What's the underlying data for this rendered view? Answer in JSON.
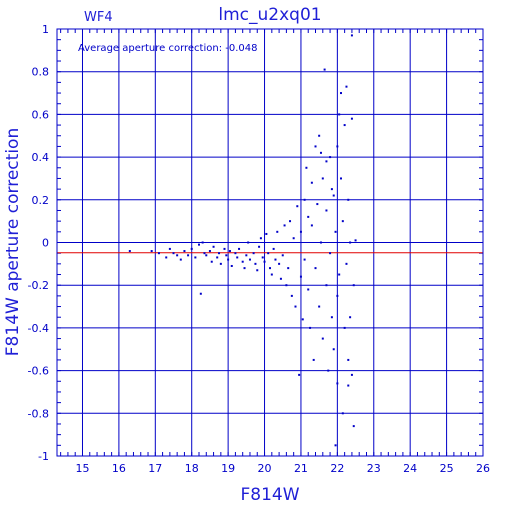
{
  "chart_data": {
    "type": "scatter",
    "title": "lmc_u2xq01",
    "panel_label": "WF4",
    "annotation": "Average aperture correction:  -0.048",
    "xlabel": "F814W",
    "ylabel": "F814W aperture correction",
    "xlim": [
      14.3,
      26
    ],
    "ylim": [
      -1,
      1
    ],
    "x_ticks": [
      15,
      16,
      17,
      18,
      19,
      20,
      21,
      22,
      23,
      24,
      25,
      26
    ],
    "x_tick_labels": [
      "15",
      "16",
      "17",
      "18",
      "19",
      "20",
      "21",
      "22",
      "23",
      "24",
      "25",
      "26"
    ],
    "y_ticks": [
      -1,
      -0.8,
      -0.6,
      -0.4,
      -0.2,
      0,
      0.2,
      0.4,
      0.6,
      0.8,
      1
    ],
    "y_tick_labels": [
      "-1",
      "-0.8",
      "-0.6",
      "-0.4",
      "-0.2",
      "0",
      "0.2",
      "0.4",
      "0.6",
      "0.8",
      "1"
    ],
    "grid": true,
    "reference_line": {
      "y": -0.048,
      "color": "#e00000"
    },
    "colors": {
      "axes": "#0000c8",
      "points": "#0000c8",
      "reference": "#e00000",
      "title": "#1f1fd6"
    },
    "points": [
      [
        16.3,
        -0.04
      ],
      [
        16.9,
        -0.04
      ],
      [
        17.1,
        -0.05
      ],
      [
        17.3,
        -0.07
      ],
      [
        17.4,
        -0.03
      ],
      [
        17.5,
        -0.05
      ],
      [
        17.6,
        -0.06
      ],
      [
        17.7,
        -0.08
      ],
      [
        17.8,
        -0.04
      ],
      [
        17.9,
        -0.06
      ],
      [
        18.0,
        -0.03
      ],
      [
        18.1,
        -0.07
      ],
      [
        18.2,
        -0.01
      ],
      [
        18.25,
        -0.24
      ],
      [
        18.3,
        0.0
      ],
      [
        18.35,
        -0.05
      ],
      [
        18.4,
        -0.06
      ],
      [
        18.5,
        -0.04
      ],
      [
        18.55,
        -0.09
      ],
      [
        18.6,
        -0.02
      ],
      [
        18.7,
        -0.07
      ],
      [
        18.75,
        -0.05
      ],
      [
        18.8,
        -0.1
      ],
      [
        18.9,
        -0.03
      ],
      [
        18.95,
        -0.06
      ],
      [
        19.0,
        -0.08
      ],
      [
        19.05,
        -0.04
      ],
      [
        19.1,
        -0.11
      ],
      [
        19.2,
        -0.05
      ],
      [
        19.25,
        -0.07
      ],
      [
        19.3,
        -0.03
      ],
      [
        19.4,
        -0.09
      ],
      [
        19.45,
        -0.12
      ],
      [
        19.5,
        -0.06
      ],
      [
        19.55,
        0.0
      ],
      [
        19.6,
        -0.08
      ],
      [
        19.7,
        -0.05
      ],
      [
        19.75,
        -0.1
      ],
      [
        19.8,
        -0.13
      ],
      [
        19.85,
        -0.02
      ],
      [
        19.9,
        0.02
      ],
      [
        19.95,
        -0.07
      ],
      [
        20.0,
        -0.09
      ],
      [
        20.05,
        0.04
      ],
      [
        20.1,
        -0.05
      ],
      [
        20.15,
        -0.12
      ],
      [
        20.2,
        -0.15
      ],
      [
        20.25,
        -0.03
      ],
      [
        20.3,
        -0.08
      ],
      [
        20.35,
        0.05
      ],
      [
        20.4,
        -0.1
      ],
      [
        20.45,
        -0.17
      ],
      [
        20.5,
        -0.06
      ],
      [
        20.55,
        0.08
      ],
      [
        20.6,
        -0.2
      ],
      [
        20.65,
        -0.12
      ],
      [
        20.7,
        0.1
      ],
      [
        20.75,
        -0.25
      ],
      [
        20.8,
        0.02
      ],
      [
        20.85,
        -0.3
      ],
      [
        20.9,
        0.17
      ],
      [
        20.95,
        -0.62
      ],
      [
        21.0,
        -0.16
      ],
      [
        21.0,
        0.05
      ],
      [
        21.05,
        -0.36
      ],
      [
        21.1,
        0.2
      ],
      [
        21.1,
        -0.08
      ],
      [
        21.15,
        0.35
      ],
      [
        21.2,
        -0.22
      ],
      [
        21.2,
        0.12
      ],
      [
        21.25,
        -0.4
      ],
      [
        21.3,
        0.08
      ],
      [
        21.3,
        0.28
      ],
      [
        21.35,
        -0.55
      ],
      [
        21.4,
        0.45
      ],
      [
        21.4,
        -0.12
      ],
      [
        21.45,
        0.18
      ],
      [
        21.5,
        -0.3
      ],
      [
        21.5,
        0.5
      ],
      [
        21.55,
        0.0
      ],
      [
        21.6,
        -0.45
      ],
      [
        21.6,
        0.3
      ],
      [
        21.65,
        0.81
      ],
      [
        21.7,
        -0.2
      ],
      [
        21.7,
        0.15
      ],
      [
        21.75,
        -0.6
      ],
      [
        21.8,
        0.4
      ],
      [
        21.8,
        -0.05
      ],
      [
        21.85,
        -0.35
      ],
      [
        21.9,
        0.22
      ],
      [
        21.9,
        -0.5
      ],
      [
        21.95,
        0.05
      ],
      [
        22.0,
        -0.25
      ],
      [
        22.0,
        0.45
      ],
      [
        22.0,
        -0.66
      ],
      [
        22.05,
        0.6
      ],
      [
        22.05,
        -0.15
      ],
      [
        22.1,
        0.7
      ],
      [
        22.1,
        0.3
      ],
      [
        22.15,
        -0.8
      ],
      [
        22.15,
        0.1
      ],
      [
        22.2,
        -0.4
      ],
      [
        22.2,
        0.55
      ],
      [
        22.25,
        -0.1
      ],
      [
        22.25,
        0.73
      ],
      [
        22.3,
        -0.55
      ],
      [
        22.3,
        0.2
      ],
      [
        22.35,
        -0.35
      ],
      [
        22.35,
        0.0
      ],
      [
        22.4,
        0.97
      ],
      [
        22.4,
        -0.62
      ],
      [
        22.4,
        0.58
      ],
      [
        22.45,
        -0.2
      ],
      [
        22.45,
        -0.86
      ],
      [
        22.5,
        0.01
      ],
      [
        21.95,
        -0.95
      ],
      [
        22.3,
        -0.67
      ],
      [
        21.55,
        0.42
      ],
      [
        21.7,
        0.38
      ],
      [
        21.85,
        0.25
      ]
    ]
  }
}
